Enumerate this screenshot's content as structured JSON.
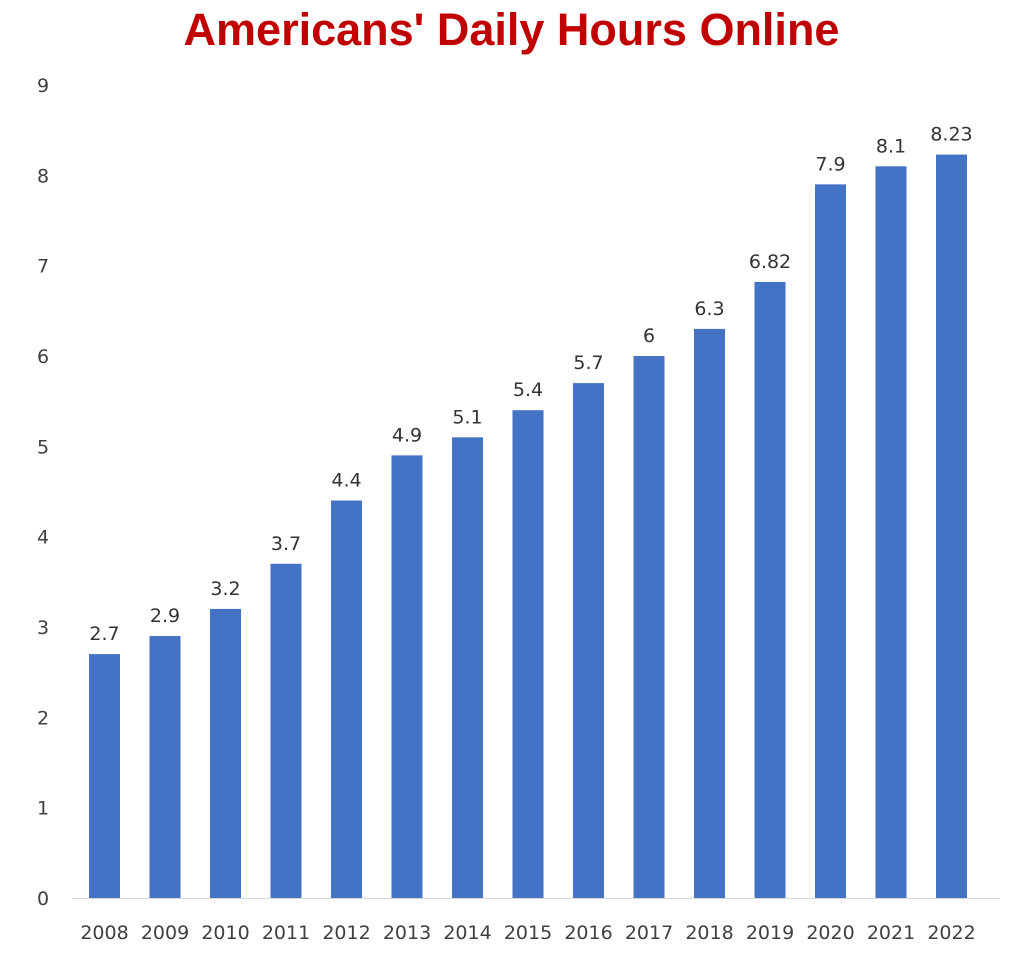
{
  "chart_data": {
    "type": "bar",
    "title": "Americans' Daily Hours Online",
    "xlabel": "",
    "ylabel": "",
    "categories": [
      "2008",
      "2009",
      "2010",
      "2011",
      "2012",
      "2013",
      "2014",
      "2015",
      "2016",
      "2017",
      "2018",
      "2019",
      "2020",
      "2021",
      "2022"
    ],
    "values": [
      2.7,
      2.9,
      3.2,
      3.7,
      4.4,
      4.9,
      5.1,
      5.4,
      5.7,
      6,
      6.3,
      6.82,
      7.9,
      8.1,
      8.23
    ],
    "data_labels": [
      "2.7",
      "2.9",
      "3.2",
      "3.7",
      "4.4",
      "4.9",
      "5.1",
      "5.4",
      "5.7",
      "6",
      "6.3",
      "6.82",
      "7.9",
      "8.1",
      "8.23"
    ],
    "ylim": [
      0,
      9
    ],
    "yticks": [
      "0",
      "1",
      "2",
      "3",
      "4",
      "5",
      "6",
      "7",
      "8",
      "9"
    ],
    "grid": false,
    "legend": "none",
    "colors": {
      "bar": "#4472c4",
      "title": "#c00000"
    }
  }
}
